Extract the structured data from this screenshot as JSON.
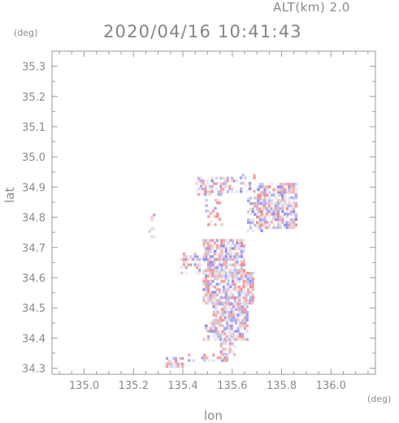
{
  "header": {
    "altitude_label": "ALT(km) 2.0",
    "timestamp": "2020/04/16 10:41:43"
  },
  "chart_data": {
    "type": "heatmap",
    "title": "2020/04/16 10:41:43",
    "subtitle": "ALT(km) 2.0",
    "xlabel": "lon",
    "ylabel": "lat",
    "x_unit": "(deg)",
    "y_unit": "(deg)",
    "xlim": [
      134.87,
      136.18
    ],
    "ylim": [
      34.28,
      35.35
    ],
    "xticks": [
      "135.0",
      "135.2",
      "135.4",
      "135.6",
      "135.8",
      "136.0"
    ],
    "yticks": [
      "34.3",
      "34.4",
      "34.5",
      "34.6",
      "34.7",
      "34.8",
      "34.9",
      "35.0",
      "35.1",
      "35.2",
      "35.3"
    ],
    "grid": false,
    "colors": {
      "positive": "#f08a8a",
      "negative": "#8a8af0",
      "frame": "#999999"
    },
    "regions": [
      {
        "lon": [
          135.45,
          135.62
        ],
        "lat": [
          34.88,
          34.94
        ],
        "density": 0.5
      },
      {
        "lon": [
          135.63,
          135.69
        ],
        "lat": [
          34.89,
          34.95
        ],
        "density": 0.45
      },
      {
        "lon": [
          135.7,
          135.86
        ],
        "lat": [
          34.77,
          34.92
        ],
        "density": 0.7
      },
      {
        "lon": [
          135.66,
          135.72
        ],
        "lat": [
          34.76,
          34.87
        ],
        "density": 0.5
      },
      {
        "lon": [
          135.49,
          135.56
        ],
        "lat": [
          34.78,
          34.87
        ],
        "density": 0.25
      },
      {
        "lon": [
          135.26,
          135.28
        ],
        "lat": [
          34.74,
          34.82
        ],
        "density": 0.35
      },
      {
        "lon": [
          135.48,
          135.65
        ],
        "lat": [
          34.62,
          34.73
        ],
        "density": 0.75
      },
      {
        "lon": [
          135.39,
          135.47
        ],
        "lat": [
          34.62,
          34.69
        ],
        "density": 0.5
      },
      {
        "lon": [
          135.48,
          135.68
        ],
        "lat": [
          34.52,
          34.62
        ],
        "density": 0.8
      },
      {
        "lon": [
          135.52,
          135.66
        ],
        "lat": [
          34.4,
          34.52
        ],
        "density": 0.75
      },
      {
        "lon": [
          135.48,
          135.53
        ],
        "lat": [
          34.4,
          34.46
        ],
        "density": 0.5
      },
      {
        "lon": [
          135.55,
          135.61
        ],
        "lat": [
          34.35,
          34.4
        ],
        "density": 0.45
      },
      {
        "lon": [
          135.42,
          135.58
        ],
        "lat": [
          34.33,
          34.35
        ],
        "density": 0.45
      },
      {
        "lon": [
          135.33,
          135.4
        ],
        "lat": [
          34.31,
          34.34
        ],
        "density": 0.5
      }
    ]
  }
}
